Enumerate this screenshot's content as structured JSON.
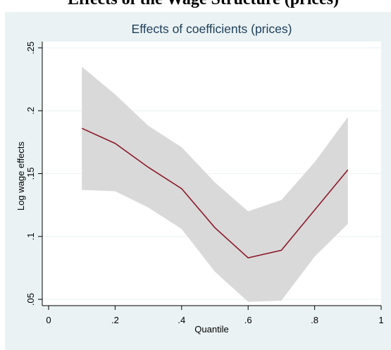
{
  "header": {
    "partial_text": "Effects of the Wage Structure (prices)"
  },
  "colors": {
    "background": "#eaf2f3",
    "plot_area": "#ffffff",
    "band": "#d9d9d9",
    "line": "#8c1a2a",
    "axis": "#000000",
    "title": "#1e3f5a"
  },
  "chart_data": {
    "type": "line",
    "title": "Effects of coefficients (prices)",
    "xlabel": "Quantile",
    "ylabel": "Log wage effects",
    "xlim": [
      0,
      1
    ],
    "ylim": [
      0.045,
      0.255
    ],
    "x_ticks": [
      "0",
      ".2",
      ".4",
      ".6",
      ".8",
      "1"
    ],
    "y_ticks": [
      ".05",
      ".1",
      ".15",
      ".2",
      ".25"
    ],
    "grid": true,
    "x": [
      0.1,
      0.2,
      0.3,
      0.4,
      0.5,
      0.6,
      0.7,
      0.8,
      0.9
    ],
    "series": [
      {
        "values": [
          0.186,
          0.174,
          0.155,
          0.138,
          0.107,
          0.083,
          0.089,
          0.121,
          0.153
        ]
      }
    ],
    "band": {
      "upper": [
        0.235,
        0.213,
        0.188,
        0.171,
        0.143,
        0.12,
        0.129,
        0.159,
        0.195
      ],
      "lower": [
        0.137,
        0.136,
        0.123,
        0.106,
        0.072,
        0.048,
        0.049,
        0.084,
        0.11
      ]
    }
  }
}
